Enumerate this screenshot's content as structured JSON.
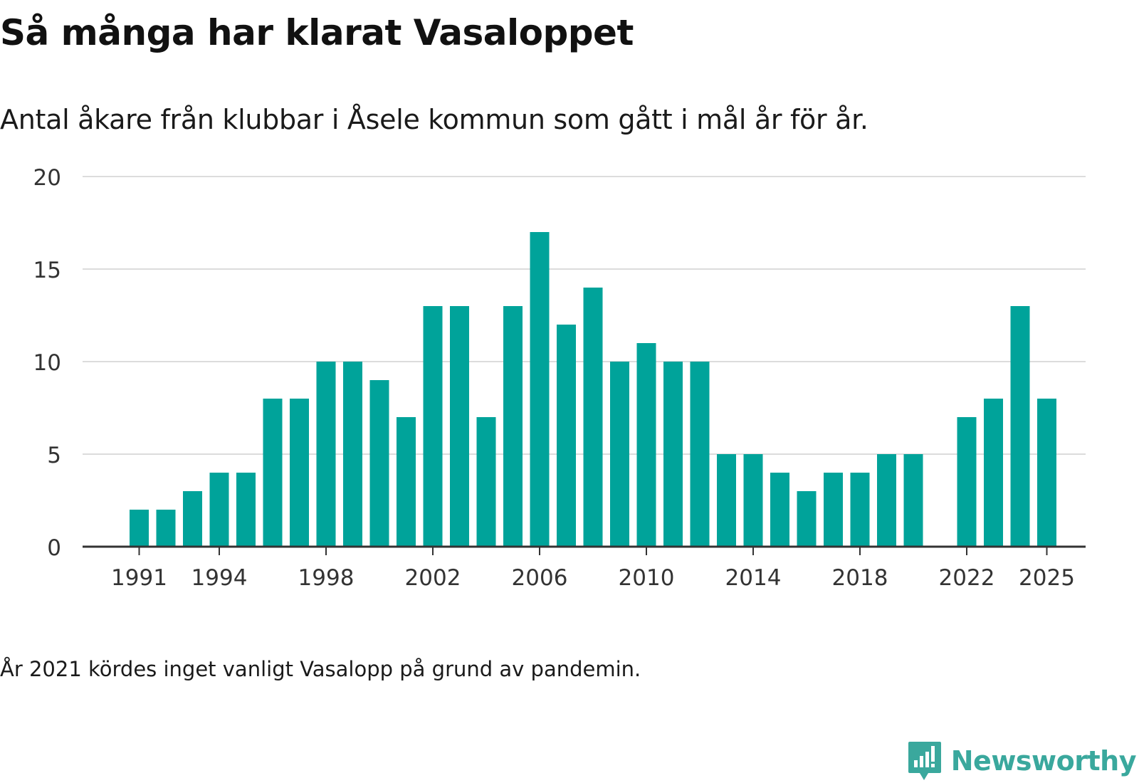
{
  "header": {
    "title": "Så många har klarat Vasaloppet",
    "subtitle": "Antal åkare från klubbar i Åsele kommun som gått i mål år för år."
  },
  "footer": {
    "note": "År 2021 kördes inget vanligt Vasalopp på grund av pandemin.",
    "brand": "Newsworthy",
    "brand_icon": "newsworthy-logo-icon"
  },
  "colors": {
    "bar": "#00a39a",
    "grid": "#dcdcdc",
    "axis": "#333333",
    "brand": "#3aa89d"
  },
  "chart_data": {
    "type": "bar",
    "title": "Så många har klarat Vasaloppet",
    "subtitle": "Antal åkare från klubbar i Åsele kommun som gått i mål år för år.",
    "xlabel": "",
    "ylabel": "",
    "ylim": [
      0,
      20
    ],
    "yticks": [
      0,
      5,
      10,
      15,
      20
    ],
    "xticks": [
      1991,
      1994,
      1998,
      2002,
      2006,
      2010,
      2014,
      2018,
      2022,
      2025
    ],
    "grid": true,
    "legend": "none",
    "categories": [
      1991,
      1992,
      1993,
      1994,
      1995,
      1996,
      1997,
      1998,
      1999,
      2000,
      2001,
      2002,
      2003,
      2004,
      2005,
      2006,
      2007,
      2008,
      2009,
      2010,
      2011,
      2012,
      2013,
      2014,
      2015,
      2016,
      2017,
      2018,
      2019,
      2020,
      2021,
      2022,
      2023,
      2024,
      2025
    ],
    "values": [
      2,
      2,
      3,
      4,
      4,
      8,
      8,
      10,
      10,
      9,
      7,
      13,
      13,
      7,
      13,
      17,
      12,
      14,
      10,
      11,
      10,
      10,
      5,
      5,
      4,
      3,
      4,
      4,
      5,
      5,
      null,
      7,
      8,
      13,
      8
    ]
  }
}
